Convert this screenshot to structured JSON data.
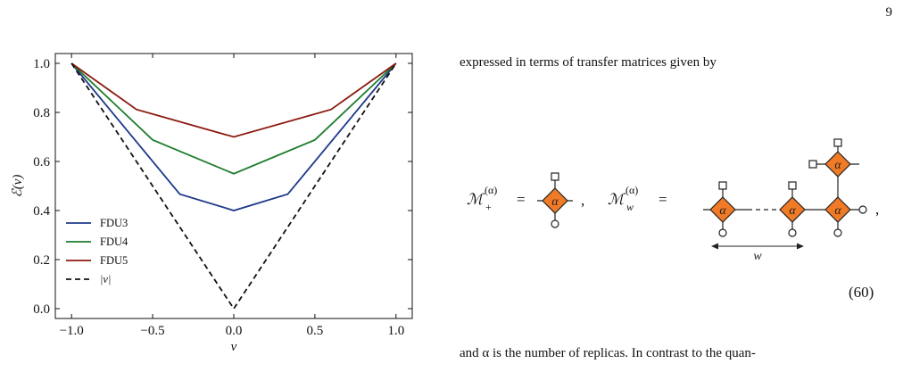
{
  "page_number": "9",
  "chart_data": {
    "type": "line",
    "xlabel": "v",
    "ylabel": "ℰ(v)",
    "xlim": [
      -1.1,
      1.1
    ],
    "ylim": [
      -0.04,
      1.04
    ],
    "xticks": [
      -1.0,
      -0.5,
      0.0,
      0.5,
      1.0
    ],
    "xtick_labels": [
      "−1.0",
      "−0.5",
      "0.0",
      "0.5",
      "1.0"
    ],
    "yticks": [
      0.0,
      0.2,
      0.4,
      0.6,
      0.8,
      1.0
    ],
    "ytick_labels": [
      "0.0",
      "0.2",
      "0.4",
      "0.6",
      "0.8",
      "1.0"
    ],
    "legend_position": "lower-left",
    "series": [
      {
        "name": "FDU3",
        "color": "#1f3a8a",
        "dash": false,
        "x": [
          -1.0,
          -0.333,
          0.0,
          0.333,
          1.0
        ],
        "y": [
          1.0,
          0.467,
          0.4,
          0.467,
          1.0
        ]
      },
      {
        "name": "FDU4",
        "color": "#1e7d2e",
        "dash": false,
        "x": [
          -1.0,
          -0.5,
          0.0,
          0.5,
          1.0
        ],
        "y": [
          1.0,
          0.688,
          0.55,
          0.688,
          1.0
        ]
      },
      {
        "name": "FDU5",
        "color": "#8b1a10",
        "dash": false,
        "x": [
          -1.0,
          -0.6,
          0.0,
          0.6,
          1.0
        ],
        "y": [
          1.0,
          0.812,
          0.7,
          0.812,
          1.0
        ]
      },
      {
        "name": "|v|",
        "color": "#111111",
        "dash": true,
        "x": [
          -1.0,
          0.0,
          1.0
        ],
        "y": [
          1.0,
          0.0,
          1.0
        ]
      }
    ]
  },
  "text": {
    "intro": "expressed in terms of transfer matrices given by",
    "tail": "and α is the number of replicas.  In contrast to the quan-"
  },
  "equation": {
    "m_plus": "ℳ",
    "m_plus_sub": "+",
    "m_w": "ℳ",
    "m_w_sub": "w",
    "superscript": "(α)",
    "equals": "=",
    "sep_comma": ",",
    "end_comma": ",",
    "node_label": "α",
    "width_label": "w",
    "eq_number": "(60)",
    "node_color": "#f07a26"
  }
}
